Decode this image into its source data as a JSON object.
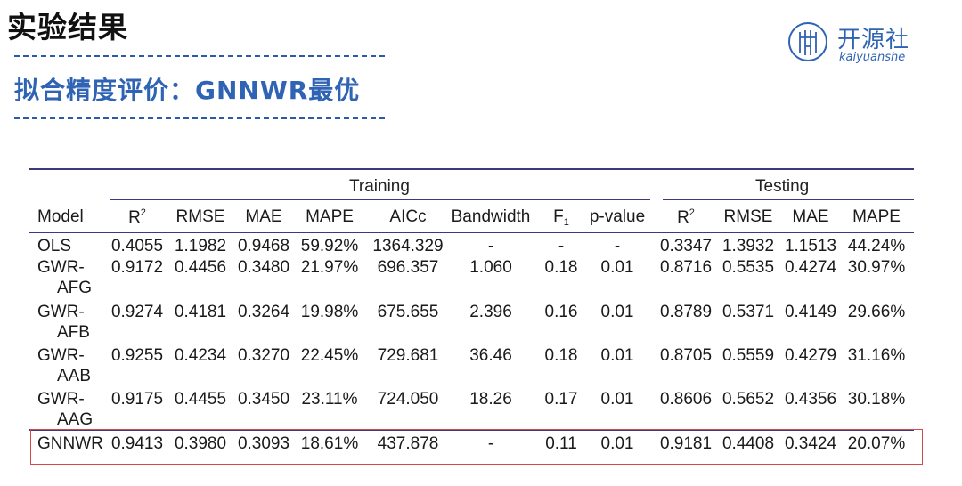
{
  "header": {
    "title": "实验结果",
    "subtitle": "拟合精度评价：GNNWR最优"
  },
  "logo": {
    "name_cn": "开源社",
    "name_en": "kaiyuanshe",
    "accent": "#2f63b3"
  },
  "table": {
    "groups": {
      "training": "Training",
      "testing": "Testing"
    },
    "columns": {
      "model": "Model",
      "r2": "R",
      "r2_sup": "2",
      "rmse": "RMSE",
      "mae": "MAE",
      "mape": "MAPE",
      "aicc": "AICc",
      "bandwidth": "Bandwidth",
      "f1": "F",
      "f1_sub": "1",
      "pvalue": "p-value",
      "test_r2": "R",
      "test_r2_sup": "2",
      "test_rmse": "RMSE",
      "test_mae": "MAE",
      "test_mape": "MAPE"
    },
    "rows": [
      {
        "model_line1": "OLS",
        "model_line2": "",
        "r2": "0.4055",
        "rmse": "1.1982",
        "mae": "0.9468",
        "mape": "59.92%",
        "aicc": "1364.329",
        "bandwidth": "-",
        "f1": "-",
        "pvalue": "-",
        "test_r2": "0.3347",
        "test_rmse": "1.3932",
        "test_mae": "1.1513",
        "test_mape": "44.24%"
      },
      {
        "model_line1": "GWR-",
        "model_line2": "AFG",
        "r2": "0.9172",
        "rmse": "0.4456",
        "mae": "0.3480",
        "mape": "21.97%",
        "aicc": "696.357",
        "bandwidth": "1.060",
        "f1": "0.18",
        "pvalue": "0.01",
        "test_r2": "0.8716",
        "test_rmse": "0.5535",
        "test_mae": "0.4274",
        "test_mape": "30.97%"
      },
      {
        "model_line1": "GWR-",
        "model_line2": "AFB",
        "r2": "0.9274",
        "rmse": "0.4181",
        "mae": "0.3264",
        "mape": "19.98%",
        "aicc": "675.655",
        "bandwidth": "2.396",
        "f1": "0.16",
        "pvalue": "0.01",
        "test_r2": "0.8789",
        "test_rmse": "0.5371",
        "test_mae": "0.4149",
        "test_mape": "29.66%"
      },
      {
        "model_line1": "GWR-",
        "model_line2": "AAB",
        "r2": "0.9255",
        "rmse": "0.4234",
        "mae": "0.3270",
        "mape": "22.45%",
        "aicc": "729.681",
        "bandwidth": "36.46",
        "f1": "0.18",
        "pvalue": "0.01",
        "test_r2": "0.8705",
        "test_rmse": "0.5559",
        "test_mae": "0.4279",
        "test_mape": "31.16%"
      },
      {
        "model_line1": "GWR-",
        "model_line2": "AAG",
        "r2": "0.9175",
        "rmse": "0.4455",
        "mae": "0.3450",
        "mape": "23.11%",
        "aicc": "724.050",
        "bandwidth": "18.26",
        "f1": "0.17",
        "pvalue": "0.01",
        "test_r2": "0.8606",
        "test_rmse": "0.5652",
        "test_mae": "0.4356",
        "test_mape": "30.18%"
      },
      {
        "model_line1": "GNNWR",
        "model_line2": "",
        "r2": "0.9413",
        "rmse": "0.3980",
        "mae": "0.3093",
        "mape": "18.61%",
        "aicc": "437.878",
        "bandwidth": "-",
        "f1": "0.11",
        "pvalue": "0.01",
        "test_r2": "0.9181",
        "test_rmse": "0.4408",
        "test_mae": "0.3424",
        "test_mape": "20.07%"
      }
    ],
    "highlight_color": "#d24a4a"
  }
}
